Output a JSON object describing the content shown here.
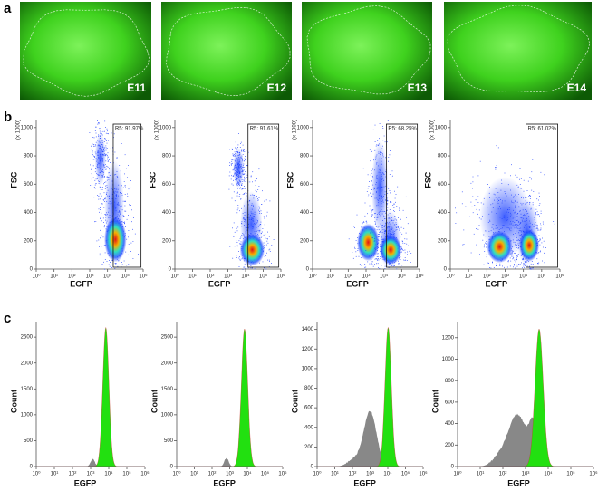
{
  "panel_labels": [
    "a",
    "b",
    "c"
  ],
  "images": [
    {
      "label": "E11"
    },
    {
      "label": "E12"
    },
    {
      "label": "E13"
    },
    {
      "label": "E14"
    }
  ],
  "scatter_axes": {
    "y_label": "FSC",
    "x_label": "EGFP",
    "y_unit": "(x 1000)",
    "ylim": [
      0,
      1050
    ],
    "yticks": [
      0,
      200,
      400,
      600,
      800,
      1000
    ],
    "xticks": [
      "10⁰",
      "10¹",
      "10²",
      "10³",
      "10⁴",
      "10⁵",
      "10⁶"
    ]
  },
  "scatter_plots": [
    {
      "gate_label": "R5: 91.97%"
    },
    {
      "gate_label": "R5: 91.61%"
    },
    {
      "gate_label": "R5: 68.25%"
    },
    {
      "gate_label": "R5: 61.02%"
    }
  ],
  "hist_axes": {
    "y_label": "Count",
    "x_label": "EGFP",
    "xticks": [
      "10⁰",
      "10¹",
      "10²",
      "10³",
      "10⁴",
      "10⁵",
      "10⁶"
    ]
  },
  "histograms": [
    {
      "ylim": [
        0,
        2800
      ],
      "yticks": [
        0,
        500,
        1000,
        1500,
        2000,
        2500
      ]
    },
    {
      "ylim": [
        0,
        2800
      ],
      "yticks": [
        0,
        500,
        1000,
        1500,
        2000,
        2500
      ]
    },
    {
      "ylim": [
        0,
        1480
      ],
      "yticks": [
        0,
        200,
        400,
        600,
        800,
        1000,
        1200,
        1400
      ]
    },
    {
      "ylim": [
        0,
        1350
      ],
      "yticks": [
        0,
        200,
        400,
        600,
        800,
        1000,
        1200
      ]
    }
  ]
}
